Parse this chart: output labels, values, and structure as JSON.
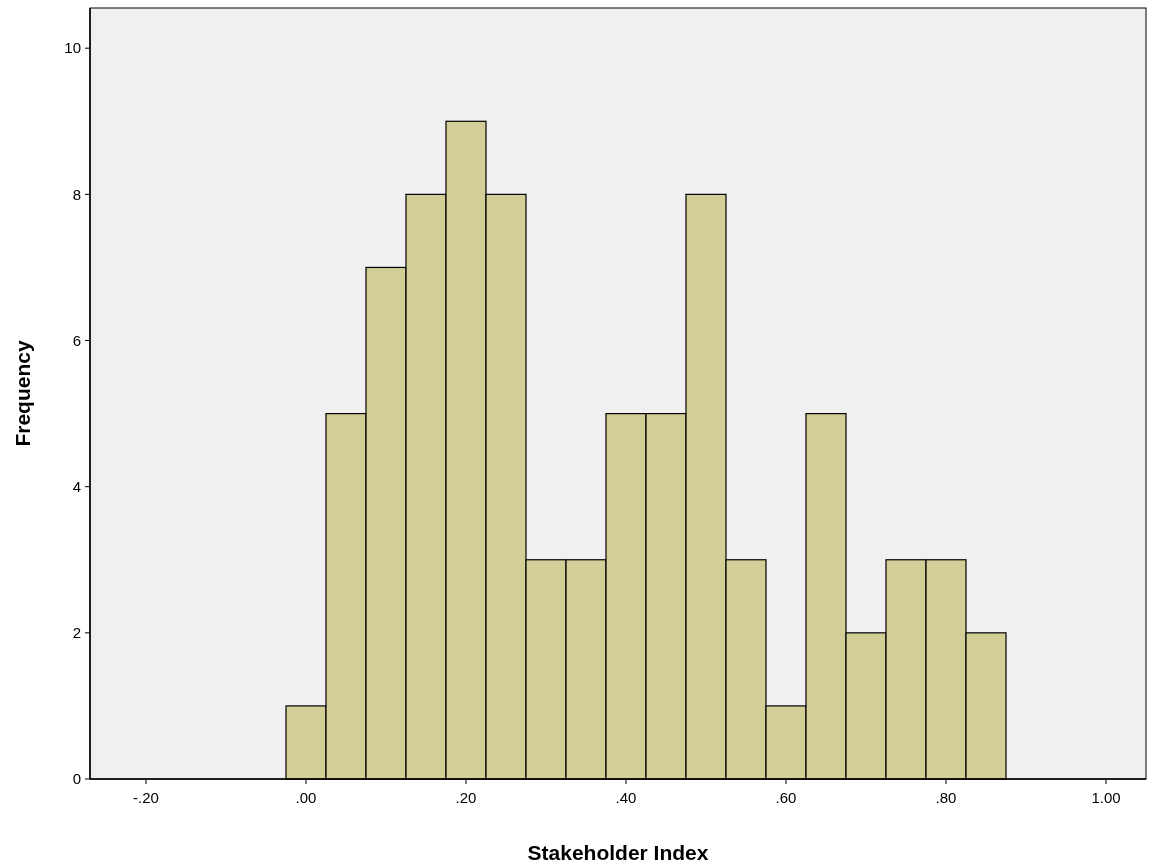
{
  "chart_data": {
    "type": "histogram",
    "xlabel": "Stakeholder Index",
    "ylabel": "Frequency",
    "bins": [
      -0.025,
      0.025,
      0.075,
      0.125,
      0.175,
      0.225,
      0.275,
      0.325,
      0.375,
      0.425,
      0.475,
      0.525,
      0.575,
      0.625,
      0.675,
      0.725,
      0.775,
      0.825,
      0.875
    ],
    "values": [
      1,
      5,
      7,
      8,
      9,
      8,
      3,
      3,
      5,
      5,
      8,
      3,
      1,
      5,
      2,
      3,
      3,
      2
    ],
    "color": "#d3ce97",
    "xlim": [
      -0.27,
      1.05
    ],
    "ylim": [
      0,
      10.55
    ],
    "xticks": [
      {
        "value": -0.2,
        "label": "-.20"
      },
      {
        "value": 0,
        "label": ".00"
      },
      {
        "value": 0.2,
        "label": ".20"
      },
      {
        "value": 0.4,
        "label": ".40"
      },
      {
        "value": 0.6,
        "label": ".60"
      },
      {
        "value": 0.8,
        "label": ".80"
      },
      {
        "value": 1,
        "label": "1.00"
      }
    ],
    "yticks": [
      0,
      2,
      4,
      6,
      8,
      10
    ],
    "grid": false
  }
}
